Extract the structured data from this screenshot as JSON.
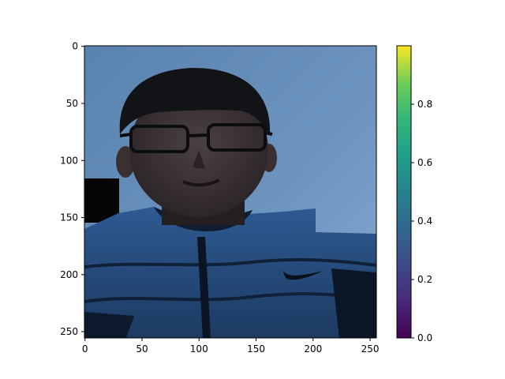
{
  "chart_data": {
    "type": "heatmap",
    "image_content": "portrait of a man with short black hair and glasses wearing a blue puffer jacket against a blue sky; small black rectangle at left edge",
    "x_ticks": [
      "0",
      "50",
      "100",
      "150",
      "200",
      "250"
    ],
    "y_ticks": [
      "0",
      "50",
      "100",
      "150",
      "200",
      "250"
    ],
    "x_tick_values": [
      0,
      50,
      100,
      150,
      200,
      250
    ],
    "y_tick_values": [
      0,
      50,
      100,
      150,
      200,
      250
    ],
    "xlim": [
      -0.5,
      255.5
    ],
    "ylim": [
      255.5,
      -0.5
    ],
    "colorbar": {
      "colormap": "viridis",
      "range": [
        0.0,
        1.0
      ],
      "ticks": [
        "0.0",
        "0.2",
        "0.4",
        "0.6",
        "0.8"
      ],
      "tick_values": [
        0.0,
        0.2,
        0.4,
        0.6,
        0.8
      ]
    },
    "colors": {
      "sky": "#5f88b4",
      "sky_light": "#7aa0c8",
      "jacket": "#2b5387",
      "jacket_dark": "#13263f",
      "hair": "#121316",
      "skin": "#3d3536",
      "skin_shadow": "#2a2325"
    }
  }
}
